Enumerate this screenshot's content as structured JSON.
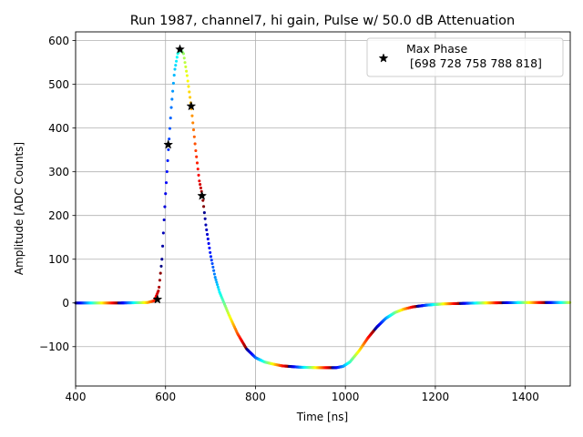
{
  "chart_data": {
    "type": "scatter",
    "title": "Run 1987, channel7, hi gain, Pulse w/ 50.0 dB Attenuation",
    "xlabel": "Time [ns]",
    "ylabel": "Amplitude [ADC Counts]",
    "xlim": [
      400,
      1500
    ],
    "ylim": [
      -190,
      620
    ],
    "xticks": [
      400,
      600,
      800,
      1000,
      1200,
      1400
    ],
    "yticks": [
      -100,
      0,
      100,
      200,
      300,
      400,
      500,
      600
    ],
    "grid": true,
    "legend_position": "top-right",
    "pulse_points": [
      [
        400,
        0
      ],
      [
        500,
        0
      ],
      [
        560,
        1
      ],
      [
        575,
        5
      ],
      [
        585,
        30
      ],
      [
        592,
        100
      ],
      [
        600,
        250
      ],
      [
        607,
        360
      ],
      [
        613,
        450
      ],
      [
        620,
        530
      ],
      [
        627,
        570
      ],
      [
        633,
        580
      ],
      [
        640,
        570
      ],
      [
        648,
        520
      ],
      [
        657,
        450
      ],
      [
        667,
        350
      ],
      [
        675,
        280
      ],
      [
        682,
        245
      ],
      [
        690,
        175
      ],
      [
        700,
        110
      ],
      [
        710,
        60
      ],
      [
        720,
        25
      ],
      [
        730,
        0
      ],
      [
        740,
        -25
      ],
      [
        760,
        -70
      ],
      [
        780,
        -105
      ],
      [
        800,
        -125
      ],
      [
        820,
        -135
      ],
      [
        840,
        -140
      ],
      [
        860,
        -144
      ],
      [
        900,
        -147
      ],
      [
        940,
        -148
      ],
      [
        980,
        -148
      ],
      [
        995,
        -145
      ],
      [
        1010,
        -135
      ],
      [
        1030,
        -110
      ],
      [
        1050,
        -80
      ],
      [
        1070,
        -55
      ],
      [
        1090,
        -35
      ],
      [
        1110,
        -22
      ],
      [
        1130,
        -14
      ],
      [
        1150,
        -9
      ],
      [
        1180,
        -5
      ],
      [
        1220,
        -2
      ],
      [
        1300,
        0
      ],
      [
        1400,
        1
      ],
      [
        1500,
        1
      ]
    ],
    "series": [
      {
        "name": "Max Phase\n [698 728 758 788 818]",
        "marker": "star",
        "color": "#000000",
        "points": [
          [
            582,
            8
          ],
          [
            606,
            362
          ],
          [
            632,
            580
          ],
          [
            657,
            450
          ],
          [
            681,
            245
          ]
        ]
      }
    ],
    "legend": {
      "line1": "Max Phase",
      "line2": " [698 728 758 788 818]"
    },
    "colormap": [
      "#00007f",
      "#0000ff",
      "#007fff",
      "#00ffff",
      "#7fff7f",
      "#ffff00",
      "#ff7f00",
      "#ff0000",
      "#7f0000"
    ]
  }
}
